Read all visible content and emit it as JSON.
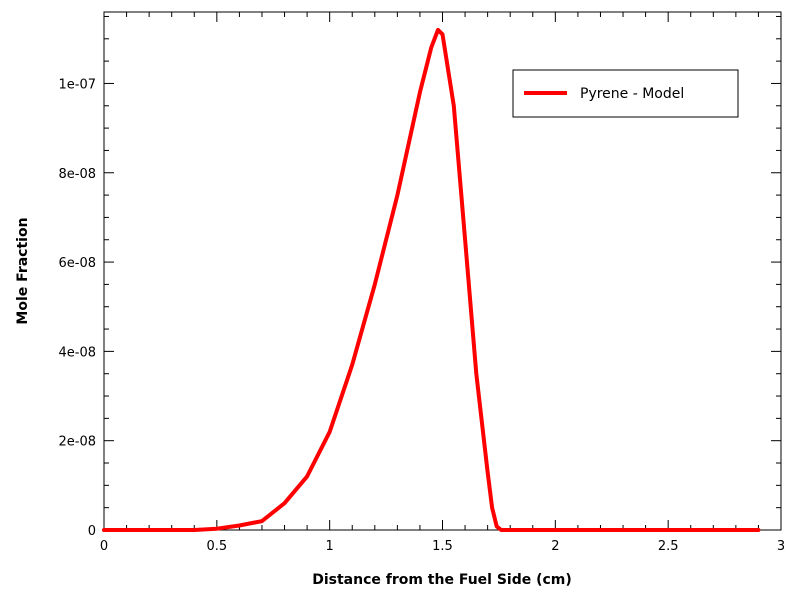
{
  "chart_data": {
    "type": "line",
    "title": "",
    "xlabel": "Distance from the Fuel Side (cm)",
    "ylabel": "Mole Fraction",
    "xlim": [
      0,
      3
    ],
    "ylim": [
      0,
      1.16e-07
    ],
    "x_ticks": [
      0,
      0.5,
      1,
      1.5,
      2,
      2.5,
      3
    ],
    "x_tick_labels": [
      "0",
      "0.5",
      "1",
      "1.5",
      "2",
      "2.5",
      "3"
    ],
    "y_ticks": [
      0,
      2e-08,
      4e-08,
      6e-08,
      8e-08,
      1e-07
    ],
    "y_tick_labels": [
      "0",
      "2e-08",
      "4e-08",
      "6e-08",
      "8e-08",
      "1e-07"
    ],
    "grid": false,
    "legend_position": "top-right",
    "series": [
      {
        "name": "Pyrene - Model",
        "color": "#ff0000",
        "x": [
          0,
          0.4,
          0.5,
          0.6,
          0.7,
          0.8,
          0.9,
          1.0,
          1.1,
          1.2,
          1.3,
          1.4,
          1.45,
          1.48,
          1.5,
          1.55,
          1.6,
          1.65,
          1.7,
          1.72,
          1.74,
          1.76,
          1.8,
          2.0,
          2.5,
          2.9
        ],
        "y": [
          0,
          0,
          3e-10,
          1e-09,
          2e-09,
          6e-09,
          1.2e-08,
          2.2e-08,
          3.7e-08,
          5.5e-08,
          7.5e-08,
          9.8e-08,
          1.08e-07,
          1.12e-07,
          1.11e-07,
          9.5e-08,
          6.5e-08,
          3.5e-08,
          1.3e-08,
          5e-09,
          8e-10,
          0,
          0,
          0,
          0,
          0
        ]
      }
    ]
  }
}
